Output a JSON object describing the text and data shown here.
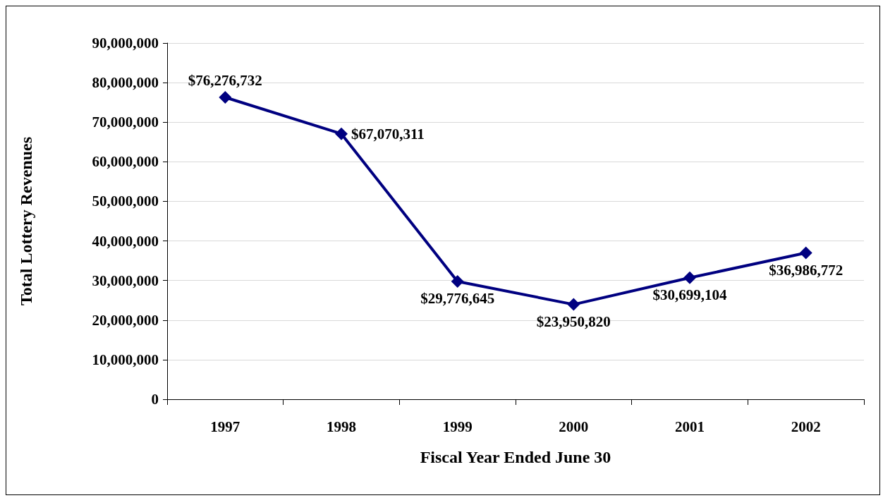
{
  "chart_data": {
    "type": "line",
    "xlabel": "Fiscal Year Ended June 30",
    "ylabel": "Total Lottery Revenues",
    "categories": [
      "1997",
      "1998",
      "1999",
      "2000",
      "2001",
      "2002"
    ],
    "series": [
      {
        "color": "#000080",
        "values": [
          76276732,
          67070311,
          29776645,
          23950820,
          30699104,
          36986772
        ],
        "value_labels": [
          "$76,276,732",
          "$67,070,311",
          "$29,776,645",
          "$23,950,820",
          "$30,699,104",
          "$36,986,772"
        ]
      }
    ],
    "ylim": [
      0,
      90000000
    ],
    "yticks": [
      {
        "value": 0,
        "label": "0"
      },
      {
        "value": 10000000,
        "label": "10,000,000"
      },
      {
        "value": 20000000,
        "label": "20,000,000"
      },
      {
        "value": 30000000,
        "label": "30,000,000"
      },
      {
        "value": 40000000,
        "label": "40,000,000"
      },
      {
        "value": 50000000,
        "label": "50,000,000"
      },
      {
        "value": 60000000,
        "label": "60,000,000"
      },
      {
        "value": 70000000,
        "label": "70,000,000"
      },
      {
        "value": 80000000,
        "label": "80,000,000"
      },
      {
        "value": 90000000,
        "label": "90,000,000"
      }
    ],
    "grid": "y",
    "marker": "diamond",
    "line_style": "solid"
  }
}
